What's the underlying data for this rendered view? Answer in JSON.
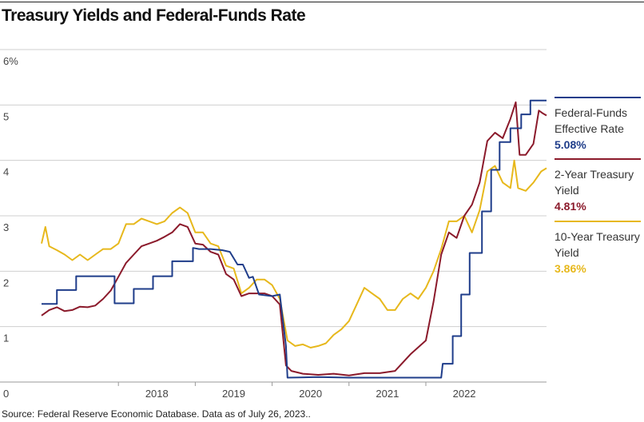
{
  "chart_data": {
    "type": "line",
    "title": "Treasury Yields and Federal-Funds Rate",
    "xlabel": "",
    "ylabel": "",
    "x_ticks": [
      "2018",
      "2019",
      "2020",
      "2021",
      "2022"
    ],
    "y_ticks": [
      "6%",
      "5",
      "4",
      "3",
      "2",
      "1",
      "0"
    ],
    "xlim": [
      2017.0,
      2023.57
    ],
    "ylim": [
      0,
      6
    ],
    "grid": "horizontal",
    "legend_position": "right",
    "series": [
      {
        "name": "Federal-Funds Effective Rate",
        "latest_label": "5.08%",
        "color": "#1f3d8a",
        "points": [
          [
            2017.0,
            1.41
          ],
          [
            2017.2,
            1.41
          ],
          [
            2017.2,
            1.66
          ],
          [
            2017.45,
            1.66
          ],
          [
            2017.45,
            1.91
          ],
          [
            2017.95,
            1.91
          ],
          [
            2017.95,
            1.42
          ],
          [
            2018.2,
            1.42
          ],
          [
            2018.2,
            1.68
          ],
          [
            2018.45,
            1.68
          ],
          [
            2018.45,
            1.91
          ],
          [
            2018.7,
            1.91
          ],
          [
            2018.7,
            2.18
          ],
          [
            2018.97,
            2.18
          ],
          [
            2018.97,
            2.42
          ],
          [
            2019.05,
            2.4
          ],
          [
            2019.2,
            2.4
          ],
          [
            2019.35,
            2.38
          ],
          [
            2019.45,
            2.35
          ],
          [
            2019.55,
            2.12
          ],
          [
            2019.62,
            2.12
          ],
          [
            2019.7,
            1.88
          ],
          [
            2019.75,
            1.9
          ],
          [
            2019.83,
            1.58
          ],
          [
            2020.0,
            1.55
          ],
          [
            2020.1,
            1.58
          ],
          [
            2020.18,
            0.65
          ],
          [
            2020.2,
            0.08
          ],
          [
            2020.6,
            0.09
          ],
          [
            2021.0,
            0.08
          ],
          [
            2021.5,
            0.08
          ],
          [
            2022.0,
            0.08
          ],
          [
            2022.2,
            0.08
          ],
          [
            2022.22,
            0.33
          ],
          [
            2022.35,
            0.33
          ],
          [
            2022.35,
            0.83
          ],
          [
            2022.46,
            0.83
          ],
          [
            2022.46,
            1.58
          ],
          [
            2022.57,
            1.58
          ],
          [
            2022.57,
            2.33
          ],
          [
            2022.73,
            2.33
          ],
          [
            2022.73,
            3.08
          ],
          [
            2022.85,
            3.08
          ],
          [
            2022.85,
            3.83
          ],
          [
            2022.96,
            3.83
          ],
          [
            2022.96,
            4.33
          ],
          [
            2023.1,
            4.33
          ],
          [
            2023.1,
            4.58
          ],
          [
            2023.24,
            4.58
          ],
          [
            2023.24,
            4.83
          ],
          [
            2023.36,
            4.83
          ],
          [
            2023.36,
            5.08
          ],
          [
            2023.57,
            5.08
          ]
        ]
      },
      {
        "name": "2-Year Treasury Yield",
        "latest_label": "4.81%",
        "color": "#8b1a2b",
        "points": [
          [
            2017.0,
            1.2
          ],
          [
            2017.1,
            1.3
          ],
          [
            2017.2,
            1.35
          ],
          [
            2017.3,
            1.28
          ],
          [
            2017.4,
            1.3
          ],
          [
            2017.5,
            1.36
          ],
          [
            2017.6,
            1.35
          ],
          [
            2017.7,
            1.38
          ],
          [
            2017.8,
            1.5
          ],
          [
            2017.9,
            1.65
          ],
          [
            2018.0,
            1.9
          ],
          [
            2018.1,
            2.15
          ],
          [
            2018.2,
            2.3
          ],
          [
            2018.3,
            2.45
          ],
          [
            2018.4,
            2.5
          ],
          [
            2018.5,
            2.55
          ],
          [
            2018.6,
            2.62
          ],
          [
            2018.7,
            2.7
          ],
          [
            2018.8,
            2.85
          ],
          [
            2018.9,
            2.8
          ],
          [
            2019.0,
            2.5
          ],
          [
            2019.1,
            2.48
          ],
          [
            2019.2,
            2.35
          ],
          [
            2019.3,
            2.3
          ],
          [
            2019.4,
            1.95
          ],
          [
            2019.5,
            1.85
          ],
          [
            2019.6,
            1.55
          ],
          [
            2019.7,
            1.6
          ],
          [
            2019.8,
            1.6
          ],
          [
            2019.9,
            1.6
          ],
          [
            2020.0,
            1.55
          ],
          [
            2020.1,
            1.4
          ],
          [
            2020.18,
            0.3
          ],
          [
            2020.25,
            0.2
          ],
          [
            2020.4,
            0.15
          ],
          [
            2020.6,
            0.13
          ],
          [
            2020.8,
            0.15
          ],
          [
            2021.0,
            0.12
          ],
          [
            2021.2,
            0.16
          ],
          [
            2021.4,
            0.16
          ],
          [
            2021.6,
            0.2
          ],
          [
            2021.8,
            0.5
          ],
          [
            2022.0,
            0.75
          ],
          [
            2022.1,
            1.45
          ],
          [
            2022.2,
            2.3
          ],
          [
            2022.3,
            2.7
          ],
          [
            2022.4,
            2.6
          ],
          [
            2022.5,
            3.0
          ],
          [
            2022.6,
            3.2
          ],
          [
            2022.7,
            3.6
          ],
          [
            2022.8,
            4.35
          ],
          [
            2022.9,
            4.5
          ],
          [
            2023.0,
            4.4
          ],
          [
            2023.1,
            4.75
          ],
          [
            2023.17,
            5.05
          ],
          [
            2023.22,
            4.1
          ],
          [
            2023.3,
            4.1
          ],
          [
            2023.4,
            4.3
          ],
          [
            2023.47,
            4.9
          ],
          [
            2023.52,
            4.85
          ],
          [
            2023.57,
            4.81
          ]
        ]
      },
      {
        "name": "10-Year Treasury Yield",
        "latest_label": "3.86%",
        "color": "#e7b81c",
        "points": [
          [
            2017.0,
            2.5
          ],
          [
            2017.05,
            2.8
          ],
          [
            2017.1,
            2.45
          ],
          [
            2017.2,
            2.38
          ],
          [
            2017.3,
            2.3
          ],
          [
            2017.4,
            2.2
          ],
          [
            2017.5,
            2.3
          ],
          [
            2017.6,
            2.2
          ],
          [
            2017.7,
            2.3
          ],
          [
            2017.8,
            2.4
          ],
          [
            2017.9,
            2.4
          ],
          [
            2018.0,
            2.5
          ],
          [
            2018.1,
            2.85
          ],
          [
            2018.2,
            2.85
          ],
          [
            2018.3,
            2.95
          ],
          [
            2018.4,
            2.9
          ],
          [
            2018.5,
            2.85
          ],
          [
            2018.6,
            2.9
          ],
          [
            2018.7,
            3.05
          ],
          [
            2018.8,
            3.15
          ],
          [
            2018.9,
            3.05
          ],
          [
            2019.0,
            2.7
          ],
          [
            2019.1,
            2.7
          ],
          [
            2019.2,
            2.5
          ],
          [
            2019.3,
            2.45
          ],
          [
            2019.4,
            2.1
          ],
          [
            2019.5,
            2.05
          ],
          [
            2019.6,
            1.6
          ],
          [
            2019.7,
            1.7
          ],
          [
            2019.8,
            1.85
          ],
          [
            2019.9,
            1.85
          ],
          [
            2020.0,
            1.75
          ],
          [
            2020.1,
            1.5
          ],
          [
            2020.2,
            0.75
          ],
          [
            2020.3,
            0.65
          ],
          [
            2020.4,
            0.68
          ],
          [
            2020.5,
            0.62
          ],
          [
            2020.6,
            0.65
          ],
          [
            2020.7,
            0.7
          ],
          [
            2020.8,
            0.85
          ],
          [
            2020.9,
            0.95
          ],
          [
            2021.0,
            1.1
          ],
          [
            2021.1,
            1.4
          ],
          [
            2021.2,
            1.7
          ],
          [
            2021.3,
            1.6
          ],
          [
            2021.4,
            1.5
          ],
          [
            2021.5,
            1.3
          ],
          [
            2021.6,
            1.3
          ],
          [
            2021.7,
            1.5
          ],
          [
            2021.8,
            1.6
          ],
          [
            2021.9,
            1.5
          ],
          [
            2022.0,
            1.7
          ],
          [
            2022.1,
            2.0
          ],
          [
            2022.2,
            2.4
          ],
          [
            2022.3,
            2.9
          ],
          [
            2022.4,
            2.9
          ],
          [
            2022.5,
            3.0
          ],
          [
            2022.6,
            2.7
          ],
          [
            2022.7,
            3.1
          ],
          [
            2022.8,
            3.8
          ],
          [
            2022.9,
            3.9
          ],
          [
            2023.0,
            3.6
          ],
          [
            2023.1,
            3.5
          ],
          [
            2023.15,
            4.0
          ],
          [
            2023.2,
            3.5
          ],
          [
            2023.3,
            3.45
          ],
          [
            2023.4,
            3.6
          ],
          [
            2023.5,
            3.8
          ],
          [
            2023.57,
            3.86
          ]
        ]
      }
    ]
  },
  "chart": {
    "title": "Treasury Yields and Federal-Funds Rate",
    "source": "Source: Federal Reserve Economic Database. Data as of July 26, 2023.."
  },
  "legend": [
    {
      "label": "Federal-Funds Effective Rate",
      "value": "5.08%",
      "color": "#1f3d8a"
    },
    {
      "label": "2-Year Treasury Yield",
      "value": "4.81%",
      "color": "#8b1a2b"
    },
    {
      "label": "10-Year Treasury Yield",
      "value": "3.86%",
      "color": "#e7b81c"
    }
  ]
}
